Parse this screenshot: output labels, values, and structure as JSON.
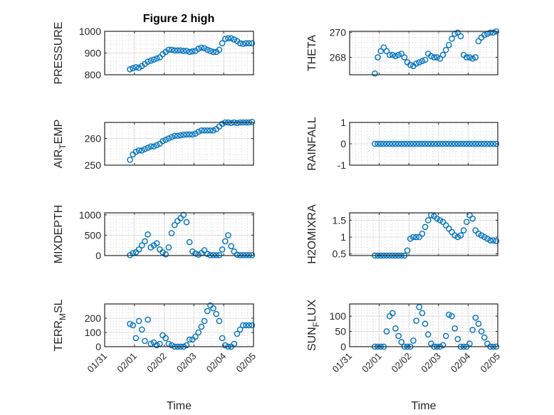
{
  "chart_data": {
    "type": "scatter",
    "title": "Figure 2 high",
    "xlabel": "Time",
    "x_tick_labels": [
      "01/31",
      "02/01",
      "02/02",
      "02/03",
      "02/04",
      "02/05"
    ],
    "x_tick_values": [
      0,
      1,
      2,
      3,
      4,
      5
    ],
    "x_units": "days since 01/31",
    "x_start": 0.85,
    "x_step": 0.1,
    "xlim": [
      0,
      5
    ],
    "marker": "circle-open",
    "color": "#0072BD",
    "grid": "major+minor",
    "subplots": [
      {
        "ylabel": {
          "main": "PRESSURE",
          "sub": "",
          "rest": ""
        },
        "ylim": [
          800,
          1000
        ],
        "yticks": [
          800,
          900,
          1000
        ],
        "ytick_labels": [
          "800",
          "900",
          "1000"
        ],
        "show_title": true,
        "values": [
          825,
          830,
          835,
          832,
          840,
          850,
          860,
          865,
          870,
          875,
          880,
          895,
          905,
          915,
          915,
          912,
          912,
          912,
          910,
          910,
          905,
          908,
          910,
          920,
          925,
          922,
          915,
          910,
          905,
          905,
          915,
          945,
          965,
          968,
          968,
          962,
          955,
          945,
          942,
          945,
          945,
          945
        ]
      },
      {
        "ylabel": {
          "main": "THETA",
          "sub": "",
          "rest": ""
        },
        "ylim": [
          266.6,
          270.1
        ],
        "yticks": [
          268,
          270
        ],
        "ytick_labels": [
          "268",
          "270"
        ],
        "values": [
          266.7,
          268,
          268.5,
          268.8,
          268.5,
          268.2,
          268.2,
          268.1,
          268.2,
          268.3,
          268,
          267.6,
          267.4,
          267.3,
          267.5,
          267.6,
          267.7,
          267.8,
          268.3,
          268.1,
          268,
          268,
          267.9,
          268.2,
          268.6,
          269,
          269.5,
          269.9,
          270,
          269.7,
          268.2,
          268,
          268,
          267.9,
          268,
          269.3,
          269.6,
          269.8,
          269.9,
          270,
          270,
          270.1
        ]
      },
      {
        "ylabel": {
          "main": "AIR",
          "sub": "T",
          "rest": "EMP"
        },
        "ylim": [
          250,
          266
        ],
        "yticks": [
          250,
          260
        ],
        "ytick_labels": [
          "250",
          "260"
        ],
        "values": [
          252,
          254,
          255,
          255.5,
          255.5,
          256,
          256.5,
          257,
          257,
          257.5,
          258,
          259,
          259.5,
          260,
          260.5,
          261,
          261,
          261.2,
          261.4,
          261.5,
          261.5,
          261.5,
          261.8,
          262.5,
          263,
          263,
          263,
          263,
          263,
          263.5,
          264.5,
          265.5,
          266,
          266,
          265.8,
          266,
          265.8,
          266,
          266,
          266,
          266,
          266.2
        ]
      },
      {
        "ylabel": {
          "main": "RAINFALL",
          "sub": "",
          "rest": ""
        },
        "ylim": [
          -1,
          1
        ],
        "yticks": [
          -1,
          0,
          1
        ],
        "ytick_labels": [
          "-1",
          "0",
          "1"
        ],
        "values": [
          0,
          0,
          0,
          0,
          0,
          0,
          0,
          0,
          0,
          0,
          0,
          0,
          0,
          0,
          0,
          0,
          0,
          0,
          0,
          0,
          0,
          0,
          0,
          0,
          0,
          0,
          0,
          0,
          0,
          0,
          0,
          0,
          0,
          0,
          0,
          0,
          0,
          0,
          0,
          0,
          0,
          0
        ]
      },
      {
        "ylabel": {
          "main": "MIXDEPTH",
          "sub": "",
          "rest": ""
        },
        "ylim": [
          0,
          1050
        ],
        "yticks": [
          0,
          500,
          1000
        ],
        "ytick_labels": [
          "0",
          "500",
          "1000"
        ],
        "values": [
          10,
          60,
          80,
          150,
          250,
          350,
          520,
          200,
          250,
          300,
          150,
          80,
          30,
          200,
          550,
          750,
          850,
          920,
          1000,
          820,
          330,
          100,
          50,
          20,
          60,
          130,
          40,
          10,
          10,
          10,
          10,
          150,
          350,
          500,
          230,
          100,
          20,
          10,
          10,
          10,
          10,
          10
        ]
      },
      {
        "ylabel": {
          "main": "H2OMIXRA",
          "sub": "",
          "rest": ""
        },
        "ylim": [
          0.45,
          1.72
        ],
        "yticks": [
          0.5,
          1,
          1.5
        ],
        "ytick_labels": [
          "0.5",
          "1",
          "1.5"
        ],
        "values": [
          0.45,
          0.45,
          0.45,
          0.45,
          0.45,
          0.45,
          0.45,
          0.45,
          0.45,
          0.45,
          0.45,
          0.6,
          0.95,
          1.0,
          1.0,
          1.0,
          1.1,
          1.3,
          1.5,
          1.65,
          1.62,
          1.55,
          1.5,
          1.45,
          1.35,
          1.25,
          1.15,
          1.05,
          1.0,
          1.05,
          1.2,
          1.45,
          1.65,
          1.55,
          1.2,
          1.1,
          1.05,
          1.0,
          0.95,
          0.9,
          0.9,
          0.88
        ]
      },
      {
        "ylabel": {
          "main": "TERR",
          "sub": "M",
          "rest": "SL"
        },
        "ylim": [
          0,
          300
        ],
        "yticks": [
          0,
          100,
          200
        ],
        "ytick_labels": [
          "0",
          "100",
          "200"
        ],
        "show_xticklabels": true,
        "values": [
          160,
          150,
          60,
          180,
          120,
          40,
          190,
          20,
          30,
          10,
          20,
          80,
          60,
          20,
          10,
          0,
          0,
          0,
          0,
          10,
          50,
          50,
          70,
          100,
          140,
          180,
          250,
          290,
          270,
          230,
          180,
          60,
          10,
          0,
          0,
          20,
          90,
          120,
          150,
          150,
          150,
          150
        ]
      },
      {
        "ylabel": {
          "main": "SUN",
          "sub": "F",
          "rest": "LUX"
        },
        "ylim": [
          0,
          140
        ],
        "yticks": [
          0,
          50,
          100
        ],
        "ytick_labels": [
          "0",
          "50",
          "100"
        ],
        "show_xticklabels": true,
        "values": [
          0,
          0,
          0,
          0,
          50,
          100,
          110,
          60,
          35,
          15,
          0,
          0,
          0,
          20,
          85,
          130,
          110,
          75,
          40,
          10,
          0,
          0,
          0,
          5,
          35,
          105,
          100,
          60,
          25,
          0,
          0,
          0,
          10,
          55,
          95,
          75,
          50,
          30,
          10,
          0,
          0,
          0
        ]
      }
    ]
  }
}
